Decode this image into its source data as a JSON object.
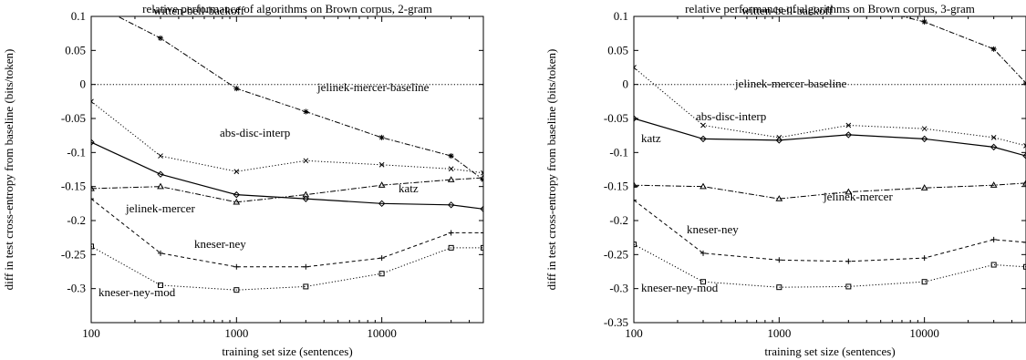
{
  "chart_data": [
    {
      "type": "line",
      "title": "relative performance of algorithms on Brown corpus, 2-gram",
      "xlabel": "training set size (sentences)",
      "ylabel": "diff in test cross-entropy from baseline (bits/token)",
      "xscale": "log",
      "xlim": [
        100,
        50000
      ],
      "ylim": [
        -0.35,
        0.1
      ],
      "xticks": [
        100,
        1000,
        10000
      ],
      "xtick_labels": [
        "100",
        "1000",
        "10000"
      ],
      "yticks": [
        0.1,
        0.05,
        0,
        -0.05,
        -0.1,
        -0.15,
        -0.2,
        -0.25,
        -0.3
      ],
      "ytick_labels": [
        "0.1",
        "0.05",
        "0",
        "-0.05",
        "-0.1",
        "-0.15",
        "-0.2",
        "-0.25",
        "-0.3"
      ],
      "grid": false,
      "series": [
        {
          "name": "witten-bell-backoff",
          "style": "dashdot",
          "marker": "star",
          "x": [
            100,
            300,
            1000,
            3000,
            10000,
            30000,
            50000
          ],
          "y": [
            0.12,
            0.068,
            -0.006,
            -0.04,
            -0.078,
            -0.105,
            -0.14
          ]
        },
        {
          "name": "jelinek-mercer-baseline",
          "style": "dotted",
          "marker": "none",
          "x": [
            100,
            50000
          ],
          "y": [
            0,
            0
          ]
        },
        {
          "name": "abs-disc-interp",
          "style": "dotted",
          "marker": "x",
          "x": [
            100,
            300,
            1000,
            3000,
            10000,
            30000,
            50000
          ],
          "y": [
            -0.025,
            -0.105,
            -0.128,
            -0.112,
            -0.118,
            -0.124,
            -0.13
          ]
        },
        {
          "name": "katz",
          "style": "solid",
          "marker": "diamond",
          "x": [
            100,
            300,
            1000,
            3000,
            10000,
            30000,
            50000
          ],
          "y": [
            -0.085,
            -0.132,
            -0.162,
            -0.168,
            -0.175,
            -0.177,
            -0.183
          ]
        },
        {
          "name": "jelinek-mercer",
          "style": "dashdot",
          "marker": "triangle",
          "x": [
            100,
            300,
            1000,
            3000,
            10000,
            30000,
            50000
          ],
          "y": [
            -0.153,
            -0.15,
            -0.173,
            -0.162,
            -0.148,
            -0.14,
            -0.137
          ]
        },
        {
          "name": "kneser-ney",
          "style": "dashed",
          "marker": "plus",
          "x": [
            100,
            300,
            1000,
            3000,
            10000,
            30000,
            50000
          ],
          "y": [
            -0.168,
            -0.248,
            -0.268,
            -0.268,
            -0.255,
            -0.218,
            -0.218
          ]
        },
        {
          "name": "kneser-ney-mod",
          "style": "dotted",
          "marker": "square",
          "x": [
            100,
            300,
            1000,
            3000,
            10000,
            30000,
            50000
          ],
          "y": [
            -0.238,
            -0.295,
            -0.302,
            -0.297,
            -0.278,
            -0.24,
            -0.24
          ]
        }
      ]
    },
    {
      "type": "line",
      "title": "relative performance of algorithms on Brown corpus, 3-gram",
      "xlabel": "training set size (sentences)",
      "ylabel": "diff in test cross-entropy from baseline (bits/token)",
      "xscale": "log",
      "xlim": [
        100,
        50000
      ],
      "ylim": [
        -0.35,
        0.1
      ],
      "xticks": [
        100,
        1000,
        10000
      ],
      "xtick_labels": [
        "100",
        "1000",
        "10000"
      ],
      "yticks": [
        0.1,
        0.05,
        0,
        -0.05,
        -0.1,
        -0.15,
        -0.2,
        -0.25,
        -0.3,
        -0.35
      ],
      "ytick_labels": [
        "0.1",
        "0.05",
        "0",
        "-0.05",
        "-0.1",
        "-0.15",
        "-0.2",
        "-0.25",
        "-0.3",
        "-0.35"
      ],
      "grid": false,
      "series": [
        {
          "name": "witten-bell-backoff",
          "style": "dashdot",
          "marker": "star",
          "x": [
            3000,
            10000,
            30000,
            50000
          ],
          "y": [
            0.12,
            0.092,
            0.052,
            0.002
          ]
        },
        {
          "name": "jelinek-mercer-baseline",
          "style": "dotted",
          "marker": "none",
          "x": [
            100,
            50000
          ],
          "y": [
            0,
            0
          ]
        },
        {
          "name": "abs-disc-interp",
          "style": "dotted",
          "marker": "x",
          "x": [
            100,
            300,
            1000,
            3000,
            10000,
            30000,
            50000
          ],
          "y": [
            0.025,
            -0.06,
            -0.078,
            -0.06,
            -0.065,
            -0.078,
            -0.09
          ]
        },
        {
          "name": "katz",
          "style": "solid",
          "marker": "diamond",
          "x": [
            100,
            300,
            1000,
            3000,
            10000,
            30000,
            50000
          ],
          "y": [
            -0.05,
            -0.08,
            -0.082,
            -0.074,
            -0.08,
            -0.092,
            -0.105
          ]
        },
        {
          "name": "jelinek-mercer",
          "style": "dashdot",
          "marker": "triangle",
          "x": [
            100,
            300,
            1000,
            3000,
            10000,
            30000,
            50000
          ],
          "y": [
            -0.148,
            -0.15,
            -0.168,
            -0.158,
            -0.152,
            -0.148,
            -0.145
          ]
        },
        {
          "name": "kneser-ney",
          "style": "dashed",
          "marker": "plus",
          "x": [
            100,
            300,
            1000,
            3000,
            10000,
            30000,
            50000
          ],
          "y": [
            -0.17,
            -0.248,
            -0.258,
            -0.26,
            -0.255,
            -0.228,
            -0.232
          ]
        },
        {
          "name": "kneser-ney-mod",
          "style": "dotted",
          "marker": "square",
          "x": [
            100,
            300,
            1000,
            3000,
            10000,
            30000,
            50000
          ],
          "y": [
            -0.235,
            -0.29,
            -0.298,
            -0.297,
            -0.29,
            -0.265,
            -0.268
          ]
        }
      ]
    }
  ]
}
